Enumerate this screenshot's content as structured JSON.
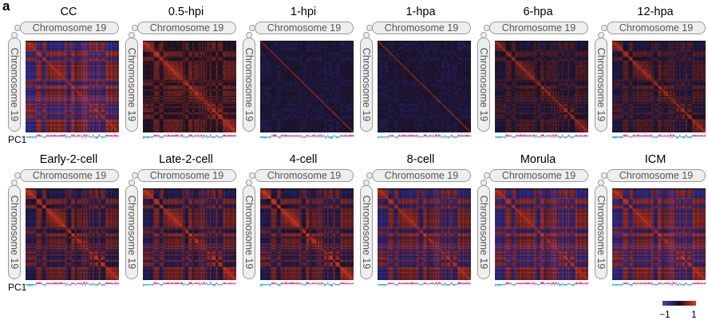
{
  "panel_label": "a",
  "axis_label": "Chromosome 19",
  "track_label": "PC1",
  "panels": [
    {
      "title": "CC"
    },
    {
      "title": "0.5-hpi"
    },
    {
      "title": "1-hpi"
    },
    {
      "title": "1-hpa"
    },
    {
      "title": "6-hpa"
    },
    {
      "title": "12-hpa"
    },
    {
      "title": "Early-2-cell"
    },
    {
      "title": "Late-2-cell"
    },
    {
      "title": "4-cell"
    },
    {
      "title": "8-cell"
    },
    {
      "title": "Morula"
    },
    {
      "title": "ICM"
    }
  ],
  "colorbar": {
    "min_label": "−1",
    "max_label": "1",
    "min": -1,
    "max": 1,
    "colors": [
      "#4a3cc8",
      "#141020",
      "#e03a20"
    ]
  },
  "pc1_colors": {
    "positive": "#e0208a",
    "negative": "#20a8d8"
  }
}
